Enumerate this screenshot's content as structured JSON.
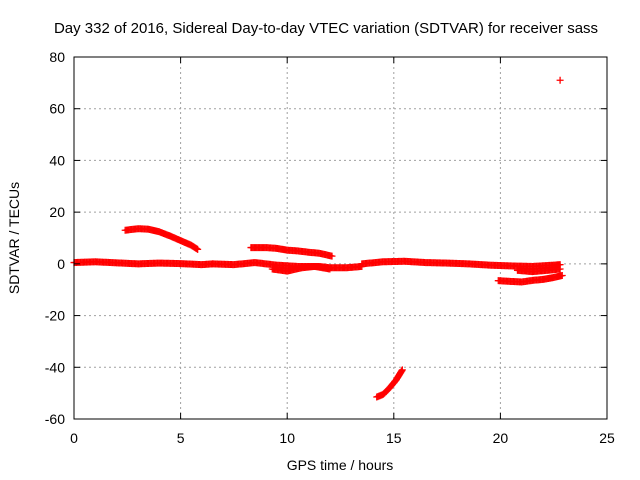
{
  "chart_data": {
    "type": "scatter",
    "title": "Day 332 of 2016, Sidereal Day-to-day VTEC variation (SDTVAR) for receiver sass",
    "xlabel": "GPS time / hours",
    "ylabel": "SDTVAR / TECUs",
    "xlim": [
      0,
      25
    ],
    "ylim": [
      -60,
      80
    ],
    "xticks": [
      0,
      5,
      10,
      15,
      20,
      25
    ],
    "yticks": [
      -60,
      -40,
      -20,
      0,
      20,
      40,
      60,
      80
    ],
    "grid": true,
    "marker": "+",
    "color": "#ff0000",
    "segments": [
      {
        "x": [
          0.0,
          1.0,
          2.0,
          3.0,
          4.0,
          5.0,
          6.0,
          6.5
        ],
        "y": [
          0.5,
          0.8,
          0.4,
          0.0,
          0.3,
          0.1,
          -0.3,
          0.0
        ]
      },
      {
        "x": [
          6.5,
          7.5,
          8.5,
          9.5,
          10.5,
          11.5,
          12.0,
          12.8,
          13.5
        ],
        "y": [
          0.0,
          -0.3,
          0.5,
          -0.5,
          -1.0,
          -1.0,
          -1.5,
          -1.5,
          -1.0
        ]
      },
      {
        "x": [
          13.5,
          14.5,
          15.5,
          16.5,
          17.5,
          18.5,
          19.5,
          20.5,
          21.5,
          22.5,
          22.8
        ],
        "y": [
          0.0,
          0.8,
          1.0,
          0.5,
          0.3,
          0.0,
          -0.5,
          -0.8,
          -1.0,
          -0.5,
          -0.3
        ]
      },
      {
        "x": [
          9.3,
          10.0,
          10.7,
          11.3,
          12.0
        ],
        "y": [
          -2.0,
          -2.8,
          -1.5,
          -1.0,
          -2.0
        ]
      },
      {
        "x": [
          20.8,
          21.5,
          22.2,
          22.8
        ],
        "y": [
          -2.5,
          -3.0,
          -2.5,
          -2.0
        ]
      },
      {
        "x": [
          2.4,
          3.0,
          3.5,
          4.0,
          4.5,
          5.0,
          5.5,
          5.8
        ],
        "y": [
          13.0,
          13.6,
          13.4,
          12.4,
          10.8,
          9.0,
          7.2,
          5.6
        ]
      },
      {
        "x": [
          8.3,
          9.0,
          9.5,
          10.0,
          10.5,
          11.0,
          11.5,
          12.1
        ],
        "y": [
          6.3,
          6.3,
          6.0,
          5.3,
          5.0,
          4.5,
          4.1,
          3.0
        ]
      },
      {
        "x": [
          14.2,
          14.5,
          14.8,
          15.1,
          15.4
        ],
        "y": [
          -51.5,
          -50.5,
          -48.0,
          -45.0,
          -41.0
        ]
      },
      {
        "x": [
          19.9,
          20.5,
          21.0,
          21.5,
          22.0,
          22.5,
          22.9
        ],
        "y": [
          -6.5,
          -6.8,
          -7.0,
          -6.4,
          -6.0,
          -5.3,
          -4.5
        ]
      },
      {
        "x": [
          22.8
        ],
        "y": [
          71.0
        ]
      }
    ]
  }
}
